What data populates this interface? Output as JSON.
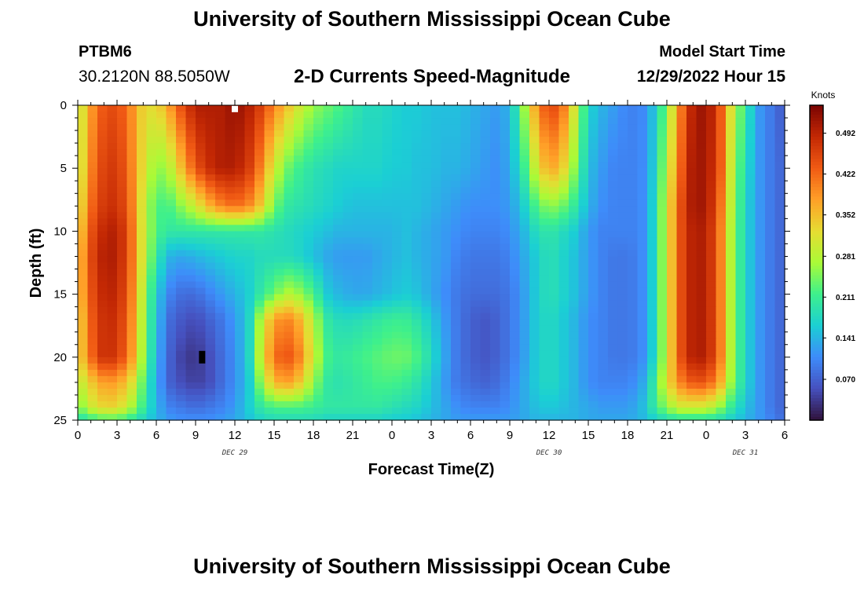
{
  "header": {
    "title": "University of Southern Mississippi Ocean Cube",
    "station_id": "PTBM6",
    "station_coords": "30.2120N  88.5050W",
    "subtitle": "2-D Currents Speed-Magnitude",
    "model_start_label": "Model Start Time",
    "model_start_value": "12/29/2022 Hour 15"
  },
  "footer": {
    "title": "University of Southern Mississippi Ocean Cube"
  },
  "chart_data": {
    "type": "heatmap",
    "title": "2-D Currents Speed-Magnitude",
    "xlabel": "Forecast Time(Z)",
    "ylabel": "Depth (ft)",
    "x_unit": "hours from 12/29/2022 00Z",
    "x_range": [
      0,
      54
    ],
    "x_ticks": [
      0,
      3,
      6,
      9,
      12,
      15,
      18,
      21,
      24,
      27,
      30,
      33,
      36,
      39,
      42,
      45,
      48,
      51,
      54
    ],
    "x_tick_labels": [
      "0",
      "3",
      "6",
      "9",
      "12",
      "15",
      "18",
      "21",
      "0",
      "3",
      "6",
      "9",
      "12",
      "15",
      "18",
      "21",
      "0",
      "3",
      "6"
    ],
    "day_labels": [
      {
        "text": "DEC 29",
        "at": 12
      },
      {
        "text": "DEC 30",
        "at": 36
      },
      {
        "text": "DEC 31",
        "at": 51
      }
    ],
    "y_range": [
      0,
      25
    ],
    "y_inverted": true,
    "y_ticks": [
      0,
      5,
      10,
      15,
      20,
      25
    ],
    "colorbar": {
      "label": "Knots",
      "range": [
        0.0,
        0.54
      ],
      "ticks": [
        0.07,
        0.141,
        0.211,
        0.281,
        0.352,
        0.422,
        0.492
      ],
      "tick_labels": [
        "0.070",
        "0.141",
        "0.211",
        "0.281",
        "0.352",
        "0.422",
        "0.492"
      ],
      "colormap": "turbo"
    },
    "markers": [
      {
        "shape": "square",
        "color": "#ffffff",
        "x": 12,
        "y": 0.3
      },
      {
        "shape": "square",
        "color": "#000000",
        "x": 9.5,
        "y": 20
      }
    ],
    "speed_field": {
      "x_hours": [
        0,
        1,
        2,
        3,
        4,
        5,
        6,
        7,
        8,
        9,
        10,
        11,
        12,
        13,
        14,
        15,
        16,
        17,
        18,
        19,
        20,
        21,
        22,
        23,
        24,
        25,
        26,
        27,
        28,
        29,
        30,
        31,
        32,
        33,
        34,
        35,
        36,
        37,
        38,
        39,
        40,
        41,
        42,
        43,
        44,
        45,
        46,
        47,
        48,
        49,
        50,
        51,
        52,
        53,
        54
      ],
      "y_depths": [
        0,
        5,
        8,
        10,
        12,
        15,
        17,
        20,
        22,
        24,
        25
      ],
      "values": [
        [
          0.28,
          0.38,
          0.44,
          0.45,
          0.4,
          0.33,
          0.32,
          0.38,
          0.45,
          0.5,
          0.5,
          0.5,
          0.52,
          0.5,
          0.46,
          0.4,
          0.35,
          0.3,
          0.26,
          0.24,
          0.22,
          0.2,
          0.18,
          0.18,
          0.17,
          0.16,
          0.16,
          0.15,
          0.15,
          0.15,
          0.14,
          0.13,
          0.12,
          0.14,
          0.25,
          0.38,
          0.46,
          0.42,
          0.3,
          0.17,
          0.14,
          0.12,
          0.1,
          0.1,
          0.15,
          0.25,
          0.4,
          0.5,
          0.52,
          0.45,
          0.3,
          0.2,
          0.12,
          0.09,
          0.06
        ],
        [
          0.28,
          0.4,
          0.46,
          0.47,
          0.41,
          0.32,
          0.25,
          0.28,
          0.36,
          0.44,
          0.48,
          0.5,
          0.5,
          0.47,
          0.4,
          0.3,
          0.24,
          0.21,
          0.19,
          0.18,
          0.17,
          0.17,
          0.17,
          0.17,
          0.16,
          0.16,
          0.15,
          0.15,
          0.14,
          0.14,
          0.13,
          0.12,
          0.11,
          0.13,
          0.2,
          0.3,
          0.38,
          0.34,
          0.25,
          0.15,
          0.12,
          0.1,
          0.1,
          0.1,
          0.16,
          0.28,
          0.42,
          0.51,
          0.51,
          0.45,
          0.28,
          0.18,
          0.12,
          0.09,
          0.07
        ],
        [
          0.3,
          0.42,
          0.47,
          0.48,
          0.42,
          0.3,
          0.22,
          0.22,
          0.26,
          0.3,
          0.36,
          0.4,
          0.42,
          0.4,
          0.34,
          0.24,
          0.2,
          0.19,
          0.18,
          0.17,
          0.16,
          0.15,
          0.15,
          0.15,
          0.15,
          0.15,
          0.15,
          0.14,
          0.13,
          0.12,
          0.11,
          0.11,
          0.11,
          0.12,
          0.16,
          0.22,
          0.26,
          0.24,
          0.2,
          0.14,
          0.11,
          0.1,
          0.1,
          0.1,
          0.17,
          0.3,
          0.44,
          0.51,
          0.51,
          0.43,
          0.27,
          0.17,
          0.12,
          0.09,
          0.07
        ],
        [
          0.32,
          0.44,
          0.49,
          0.5,
          0.43,
          0.3,
          0.22,
          0.2,
          0.2,
          0.2,
          0.2,
          0.2,
          0.2,
          0.2,
          0.2,
          0.19,
          0.18,
          0.17,
          0.16,
          0.15,
          0.14,
          0.14,
          0.14,
          0.14,
          0.14,
          0.15,
          0.14,
          0.13,
          0.12,
          0.11,
          0.1,
          0.1,
          0.1,
          0.11,
          0.14,
          0.18,
          0.2,
          0.18,
          0.16,
          0.12,
          0.1,
          0.1,
          0.1,
          0.1,
          0.17,
          0.3,
          0.44,
          0.5,
          0.5,
          0.42,
          0.26,
          0.17,
          0.12,
          0.09,
          0.07
        ],
        [
          0.34,
          0.45,
          0.5,
          0.5,
          0.43,
          0.3,
          0.2,
          0.14,
          0.13,
          0.14,
          0.15,
          0.16,
          0.17,
          0.17,
          0.18,
          0.18,
          0.18,
          0.17,
          0.15,
          0.13,
          0.12,
          0.12,
          0.12,
          0.13,
          0.14,
          0.15,
          0.14,
          0.13,
          0.12,
          0.1,
          0.09,
          0.09,
          0.09,
          0.1,
          0.13,
          0.16,
          0.19,
          0.17,
          0.15,
          0.12,
          0.1,
          0.09,
          0.09,
          0.1,
          0.17,
          0.3,
          0.44,
          0.5,
          0.5,
          0.42,
          0.26,
          0.17,
          0.12,
          0.09,
          0.07
        ],
        [
          0.34,
          0.44,
          0.49,
          0.49,
          0.42,
          0.28,
          0.16,
          0.1,
          0.08,
          0.08,
          0.1,
          0.12,
          0.14,
          0.16,
          0.2,
          0.24,
          0.28,
          0.26,
          0.22,
          0.16,
          0.14,
          0.13,
          0.13,
          0.14,
          0.15,
          0.16,
          0.15,
          0.13,
          0.11,
          0.09,
          0.08,
          0.08,
          0.08,
          0.09,
          0.12,
          0.16,
          0.19,
          0.17,
          0.15,
          0.12,
          0.1,
          0.09,
          0.09,
          0.1,
          0.17,
          0.3,
          0.44,
          0.5,
          0.5,
          0.42,
          0.26,
          0.17,
          0.12,
          0.09,
          0.07
        ],
        [
          0.32,
          0.43,
          0.48,
          0.48,
          0.41,
          0.27,
          0.15,
          0.08,
          0.06,
          0.05,
          0.07,
          0.09,
          0.12,
          0.16,
          0.28,
          0.38,
          0.4,
          0.36,
          0.28,
          0.2,
          0.18,
          0.18,
          0.19,
          0.2,
          0.21,
          0.21,
          0.19,
          0.16,
          0.12,
          0.09,
          0.07,
          0.06,
          0.07,
          0.09,
          0.12,
          0.16,
          0.18,
          0.16,
          0.14,
          0.11,
          0.1,
          0.09,
          0.09,
          0.1,
          0.17,
          0.3,
          0.44,
          0.5,
          0.5,
          0.42,
          0.26,
          0.17,
          0.12,
          0.09,
          0.07
        ],
        [
          0.32,
          0.42,
          0.48,
          0.47,
          0.4,
          0.26,
          0.14,
          0.07,
          0.04,
          0.03,
          0.05,
          0.08,
          0.11,
          0.16,
          0.3,
          0.42,
          0.44,
          0.4,
          0.3,
          0.22,
          0.2,
          0.21,
          0.22,
          0.23,
          0.24,
          0.24,
          0.22,
          0.18,
          0.13,
          0.09,
          0.07,
          0.06,
          0.07,
          0.09,
          0.12,
          0.16,
          0.18,
          0.16,
          0.14,
          0.11,
          0.1,
          0.09,
          0.09,
          0.1,
          0.17,
          0.3,
          0.44,
          0.5,
          0.5,
          0.42,
          0.26,
          0.17,
          0.12,
          0.09,
          0.07
        ],
        [
          0.28,
          0.34,
          0.38,
          0.38,
          0.33,
          0.23,
          0.13,
          0.07,
          0.05,
          0.04,
          0.05,
          0.08,
          0.11,
          0.15,
          0.26,
          0.36,
          0.38,
          0.34,
          0.26,
          0.2,
          0.19,
          0.2,
          0.21,
          0.22,
          0.22,
          0.21,
          0.19,
          0.16,
          0.12,
          0.09,
          0.08,
          0.07,
          0.08,
          0.1,
          0.13,
          0.16,
          0.18,
          0.16,
          0.14,
          0.11,
          0.1,
          0.1,
          0.1,
          0.12,
          0.2,
          0.32,
          0.4,
          0.44,
          0.44,
          0.38,
          0.25,
          0.17,
          0.12,
          0.09,
          0.07
        ],
        [
          0.24,
          0.3,
          0.33,
          0.33,
          0.28,
          0.21,
          0.14,
          0.1,
          0.09,
          0.08,
          0.09,
          0.1,
          0.12,
          0.16,
          0.2,
          0.22,
          0.22,
          0.22,
          0.21,
          0.2,
          0.2,
          0.2,
          0.2,
          0.2,
          0.19,
          0.18,
          0.17,
          0.15,
          0.13,
          0.11,
          0.1,
          0.1,
          0.1,
          0.11,
          0.13,
          0.15,
          0.16,
          0.15,
          0.14,
          0.13,
          0.12,
          0.12,
          0.12,
          0.14,
          0.2,
          0.26,
          0.3,
          0.3,
          0.3,
          0.26,
          0.2,
          0.15,
          0.12,
          0.09,
          0.07
        ],
        [
          0.18,
          0.2,
          0.22,
          0.22,
          0.2,
          0.17,
          0.14,
          0.12,
          0.11,
          0.11,
          0.11,
          0.12,
          0.13,
          0.15,
          0.17,
          0.18,
          0.18,
          0.18,
          0.18,
          0.17,
          0.17,
          0.17,
          0.17,
          0.17,
          0.16,
          0.16,
          0.15,
          0.14,
          0.13,
          0.12,
          0.12,
          0.12,
          0.12,
          0.12,
          0.13,
          0.14,
          0.14,
          0.14,
          0.14,
          0.13,
          0.13,
          0.13,
          0.13,
          0.14,
          0.16,
          0.18,
          0.19,
          0.19,
          0.19,
          0.18,
          0.16,
          0.14,
          0.12,
          0.1,
          0.08
        ]
      ]
    }
  }
}
